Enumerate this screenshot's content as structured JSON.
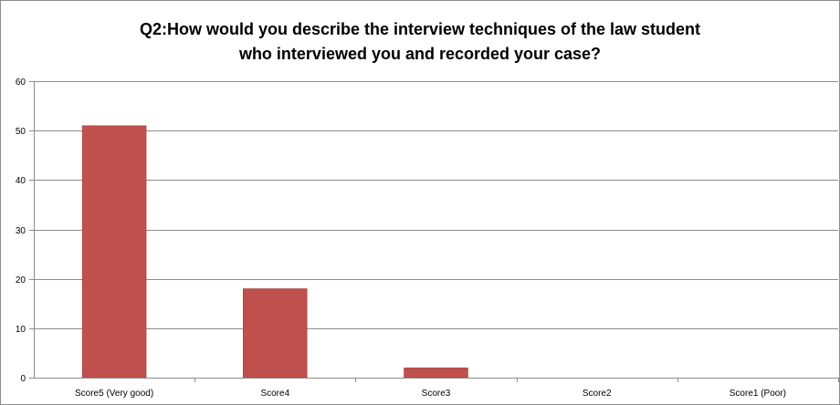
{
  "chart_data": {
    "type": "bar",
    "title_lines": [
      "Q2:How would you describe the interview techniques of the law student",
      "who interviewed you and recorded your case?"
    ],
    "categories": [
      "Score5 (Very good)",
      "Score4",
      "Score3",
      "Score2",
      "Score1 (Poor)"
    ],
    "series": [
      {
        "values": [
          51,
          18,
          2,
          0,
          0
        ]
      }
    ],
    "ylim": [
      0,
      60
    ],
    "yticks": [
      0,
      10,
      20,
      30,
      40,
      50,
      60
    ],
    "grid": true,
    "legend": "none",
    "colors": {
      "bar": "#c0504d",
      "bar_edge": "#9b3b38",
      "grid": "#8c8c8c",
      "axis": "#8c8c8c"
    }
  }
}
